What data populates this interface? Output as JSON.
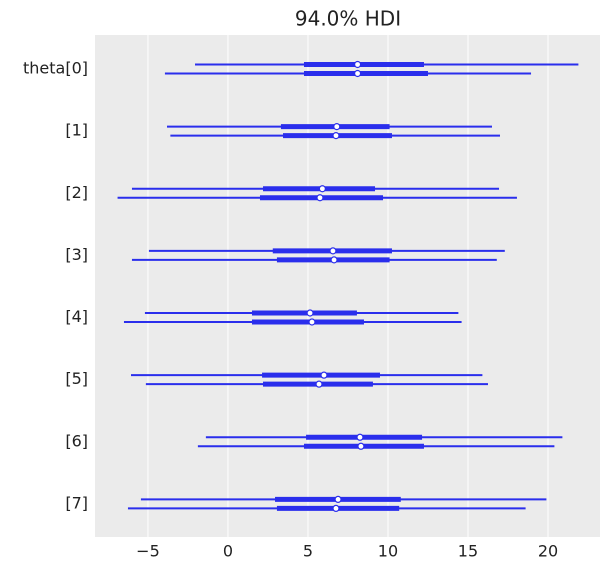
{
  "chart_data": {
    "type": "forest",
    "title": "94.0% HDI",
    "categories": [
      "theta[0]",
      "[1]",
      "[2]",
      "[3]",
      "[4]",
      "[5]",
      "[6]",
      "[7]"
    ],
    "color": "#2a2eec",
    "chains": [
      {
        "hdi_low": [
          -2.06,
          -3.81,
          -6.0,
          -4.94,
          -5.19,
          -6.06,
          -1.38,
          -5.44
        ],
        "hdi_high": [
          21.9,
          16.5,
          16.94,
          17.3,
          14.4,
          15.9,
          20.9,
          19.9
        ],
        "q_low": [
          4.75,
          3.31,
          2.19,
          2.8,
          1.5,
          2.13,
          4.88,
          2.94
        ],
        "q_high": [
          12.25,
          10.1,
          9.19,
          10.25,
          8.06,
          9.5,
          12.13,
          10.8
        ],
        "median": [
          8.1,
          6.8,
          5.9,
          6.56,
          5.13,
          6.0,
          8.25,
          6.88
        ]
      },
      {
        "hdi_low": [
          -3.94,
          -3.6,
          -6.9,
          -6.0,
          -6.5,
          -5.13,
          -1.88,
          -6.25
        ],
        "hdi_high": [
          18.94,
          17.0,
          18.06,
          16.8,
          14.6,
          16.25,
          20.4,
          18.6
        ],
        "q_low": [
          4.75,
          3.44,
          2.0,
          3.06,
          1.5,
          2.19,
          4.75,
          3.06
        ],
        "q_high": [
          12.5,
          10.25,
          9.69,
          10.1,
          8.5,
          9.06,
          12.25,
          10.7
        ],
        "median": [
          8.1,
          6.75,
          5.75,
          6.63,
          5.25,
          5.69,
          8.31,
          6.75
        ]
      }
    ],
    "xlim": [
      -8.31,
      23.25
    ],
    "xticks": [
      {
        "value": -5,
        "label": "−5"
      },
      0,
      5,
      10,
      15,
      20
    ],
    "grid": true
  }
}
